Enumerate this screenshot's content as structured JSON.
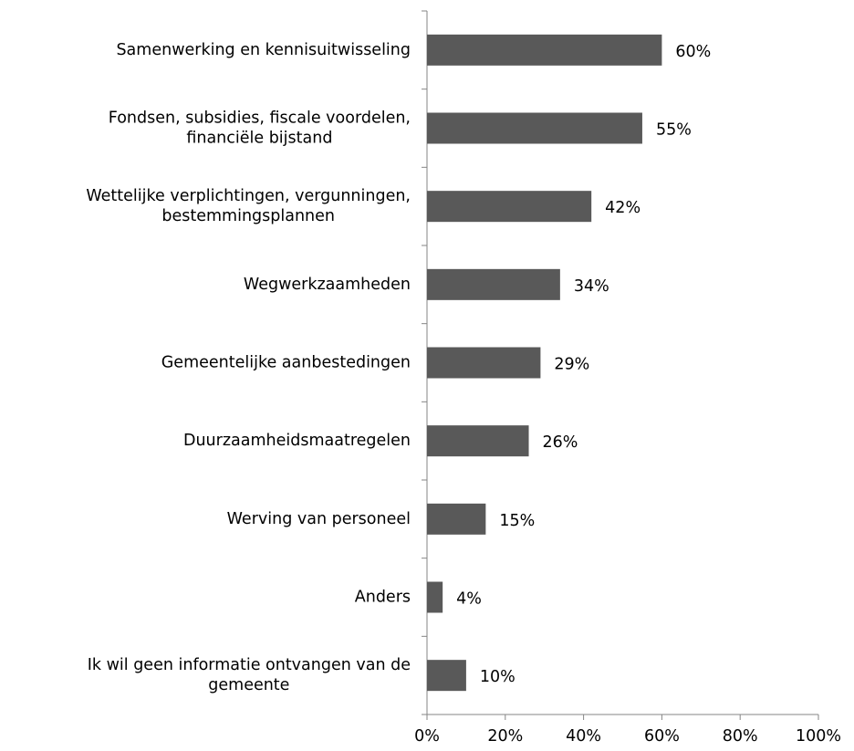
{
  "chart_data": {
    "type": "bar",
    "orientation": "horizontal",
    "categories": [
      "Samenwerking en kennisuitwisseling",
      "Fondsen, subsidies, fiscale voordelen,\nfinanciële bijstand",
      "Wettelijke verplichtingen, vergunningen,\nbestemmingsplannen",
      "Wegwerkzaamheden",
      "Gemeentelijke aanbestedingen",
      "Duurzaamheidsmaatregelen",
      "Werving van personeel",
      "Anders",
      "Ik wil geen informatie ontvangen van de\ngemeente"
    ],
    "values": [
      60,
      55,
      42,
      34,
      29,
      26,
      15,
      4,
      10
    ],
    "value_labels": [
      "60%",
      "55%",
      "42%",
      "34%",
      "29%",
      "26%",
      "15%",
      "4%",
      "10%"
    ],
    "color": "#595959",
    "xlim": [
      0,
      100
    ],
    "xticks": [
      {
        "value": 0,
        "label": "0%"
      },
      {
        "value": 20,
        "label": "20%"
      },
      {
        "value": 40,
        "label": "40%"
      },
      {
        "value": 60,
        "label": "60%"
      },
      {
        "value": 80,
        "label": "80%"
      },
      {
        "value": 100,
        "label": "100%"
      }
    ],
    "grid": false
  }
}
